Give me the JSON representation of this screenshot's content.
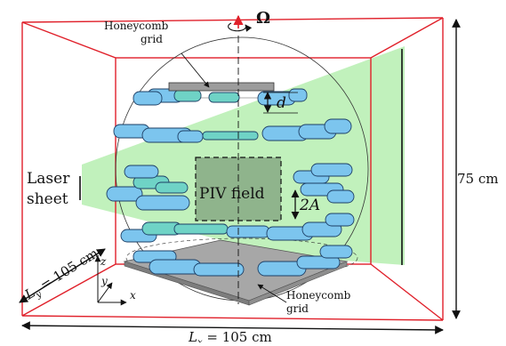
{
  "labels": {
    "honeycomb_top_line1": "Honeycomb",
    "honeycomb_top_line2": "grid",
    "honeycomb_bottom_line1": "Honeycomb",
    "honeycomb_bottom_line2": "grid",
    "omega": "Ω",
    "d": "d",
    "laser_line1": "Laser",
    "laser_line2": "sheet",
    "piv_field": "PIV field",
    "two_a": "2A",
    "height": "75 cm",
    "ly": "L",
    "ly_sub": "y",
    "ly_rest": " = 105 cm",
    "lx": "L",
    "lx_sub": "x",
    "lx_rest": " = 105 cm",
    "axis_x": "x",
    "axis_y": "y",
    "axis_z": "z"
  },
  "colors": {
    "tank_edge": "#e0202a",
    "laser_sheet": "#b6efb0",
    "cylinder_blue": "#7cc5ee",
    "cylinder_teal": "#6fd3c6",
    "cylinder_stroke": "#1d3f66",
    "honeycomb": "#9c9c9c",
    "piv_field": "#7d9f7c",
    "rotation_arrow": "#e0202a"
  }
}
